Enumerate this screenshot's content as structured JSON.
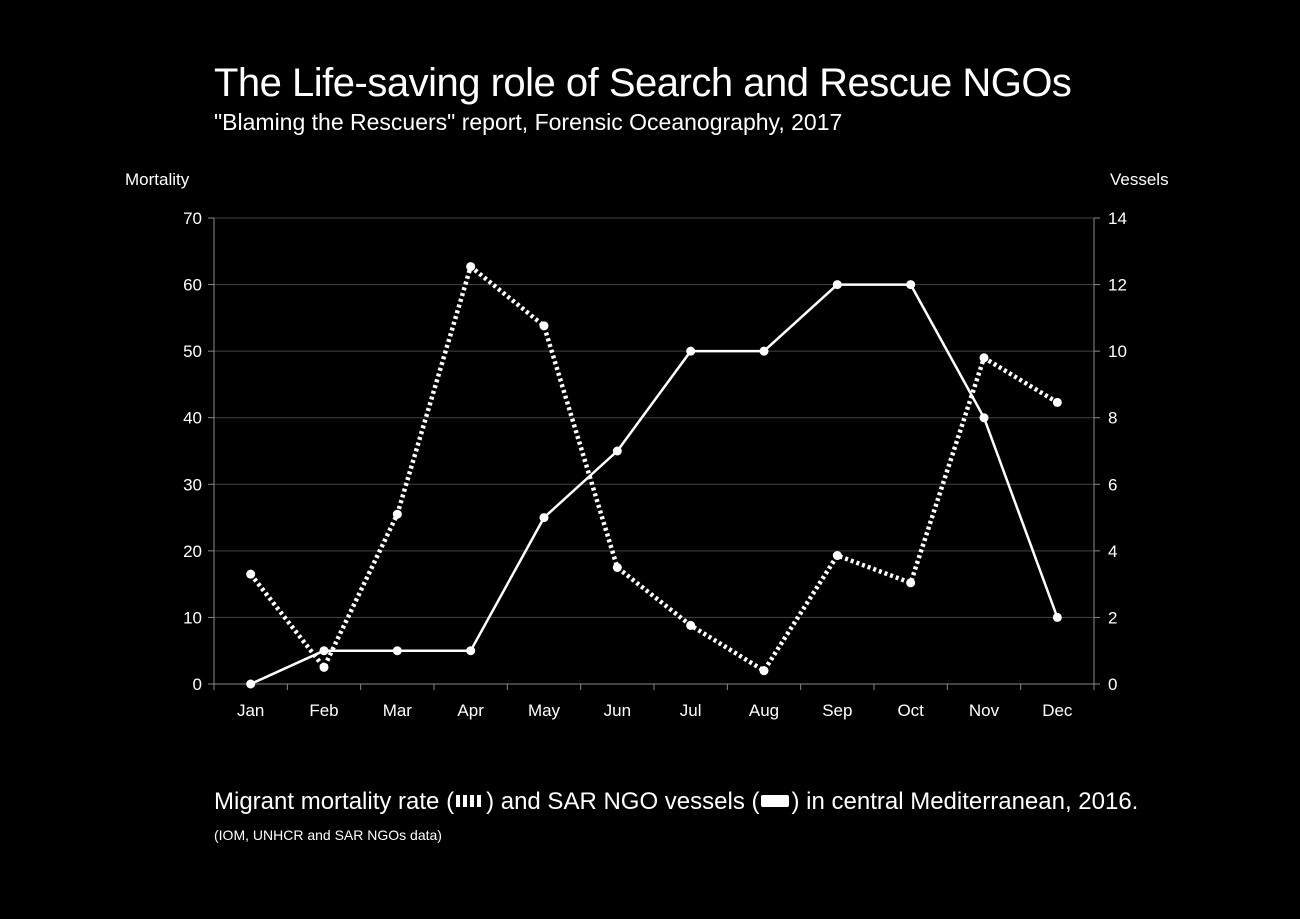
{
  "title": "The Life-saving role of Search and Rescue NGOs",
  "subtitle": "\"Blaming the Rescuers\" report, Forensic Oceanography, 2017",
  "caption": {
    "part1": "Migrant mortality rate (",
    "part2": ") and SAR NGO vessels (",
    "part3": ") in central Mediterranean, 2016.",
    "source": "(IOM, UNHCR and SAR NGOs data)"
  },
  "colors": {
    "background": "#000000",
    "foreground": "#ffffff",
    "gridline": "#444444"
  },
  "chart_data": {
    "type": "line",
    "ylabel": "Mortality",
    "y2label": "Vessels",
    "categories": [
      "Jan",
      "Feb",
      "Mar",
      "Apr",
      "May",
      "Jun",
      "Jul",
      "Aug",
      "Sep",
      "Oct",
      "Nov",
      "Dec"
    ],
    "ylim": [
      0,
      70
    ],
    "y2lim": [
      0,
      14
    ],
    "yticks": [
      "0",
      "10",
      "20",
      "30",
      "40",
      "50",
      "60",
      "70"
    ],
    "y2ticks": [
      "0",
      "2",
      "4",
      "6",
      "8",
      "10",
      "12",
      "14"
    ],
    "grid": true,
    "series": [
      {
        "style": "dotted",
        "axis": "left",
        "values": [
          16.5,
          2.5,
          25.5,
          62.7,
          53.8,
          17.5,
          8.8,
          2,
          19.3,
          15.2,
          49,
          42.3
        ]
      },
      {
        "style": "solid",
        "axis": "right",
        "values": [
          0,
          1,
          1,
          1,
          5,
          7,
          10,
          10,
          12,
          12,
          8,
          2
        ]
      }
    ]
  }
}
